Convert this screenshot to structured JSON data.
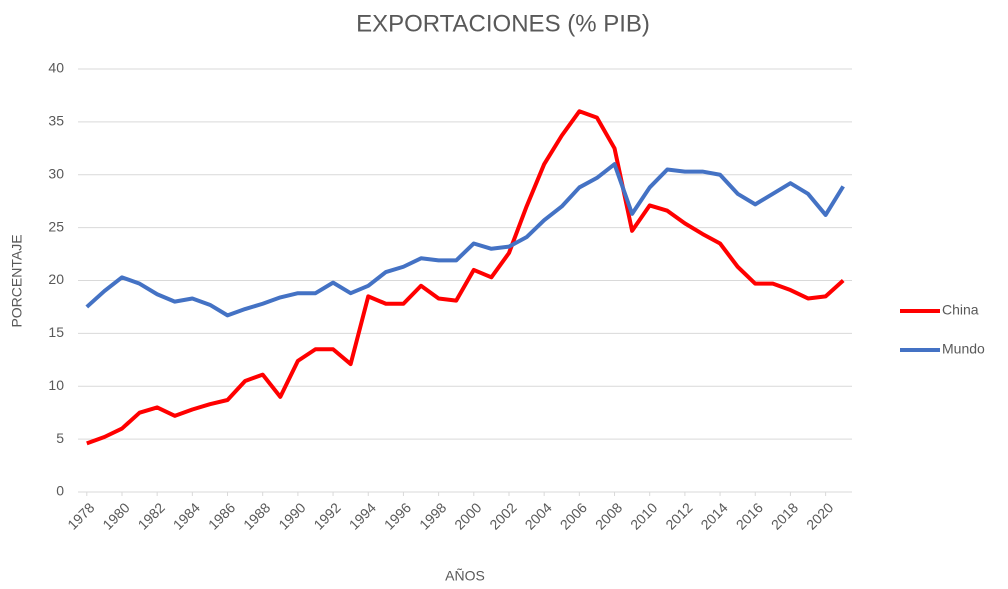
{
  "chart_data": {
    "type": "line",
    "title": "EXPORTACIONES (% PIB)",
    "x_label": "AÑOS",
    "y_label": "PORCENTAJE",
    "x": [
      1978,
      1979,
      1980,
      1981,
      1982,
      1983,
      1984,
      1985,
      1986,
      1987,
      1988,
      1989,
      1990,
      1991,
      1992,
      1993,
      1994,
      1995,
      1996,
      1997,
      1998,
      1999,
      2000,
      2001,
      2002,
      2003,
      2004,
      2005,
      2006,
      2007,
      2008,
      2009,
      2010,
      2011,
      2012,
      2013,
      2014,
      2015,
      2016,
      2017,
      2018,
      2019,
      2020,
      2021
    ],
    "series": [
      {
        "name": "China",
        "color": "#ff0000",
        "values": [
          4.6,
          5.2,
          6.0,
          7.5,
          8.0,
          7.2,
          7.8,
          8.3,
          8.7,
          10.5,
          11.1,
          9.0,
          12.4,
          13.5,
          13.5,
          12.1,
          18.5,
          17.8,
          17.8,
          19.5,
          18.3,
          18.1,
          21.0,
          20.3,
          22.6,
          27.0,
          31.0,
          33.7,
          36.0,
          35.4,
          32.5,
          24.7,
          27.1,
          26.6,
          25.4,
          24.4,
          23.5,
          21.3,
          19.7,
          19.7,
          19.1,
          18.3,
          18.5,
          20.0
        ]
      },
      {
        "name": "Mundo",
        "color": "#4472c4",
        "values": [
          17.5,
          19.0,
          20.3,
          19.7,
          18.7,
          18.0,
          18.3,
          17.7,
          16.7,
          17.3,
          17.8,
          18.4,
          18.8,
          18.8,
          19.8,
          18.8,
          19.5,
          20.8,
          21.3,
          22.1,
          21.9,
          21.9,
          23.5,
          23.0,
          23.2,
          24.1,
          25.7,
          27.0,
          28.8,
          29.7,
          31.0,
          26.3,
          28.8,
          30.5,
          30.3,
          30.3,
          30.0,
          28.2,
          27.2,
          28.2,
          29.2,
          28.2,
          26.2,
          28.9
        ]
      }
    ],
    "xlim": [
      1977.5,
      2021.5
    ],
    "xticks": [
      1978,
      1980,
      1982,
      1984,
      1986,
      1988,
      1990,
      1992,
      1994,
      1996,
      1998,
      2000,
      2002,
      2004,
      2006,
      2008,
      2010,
      2012,
      2014,
      2016,
      2018,
      2020
    ],
    "ylim": [
      0,
      40
    ],
    "yticks": [
      0,
      5,
      10,
      15,
      20,
      25,
      30,
      35,
      40
    ],
    "grid": true,
    "legend": "right"
  }
}
